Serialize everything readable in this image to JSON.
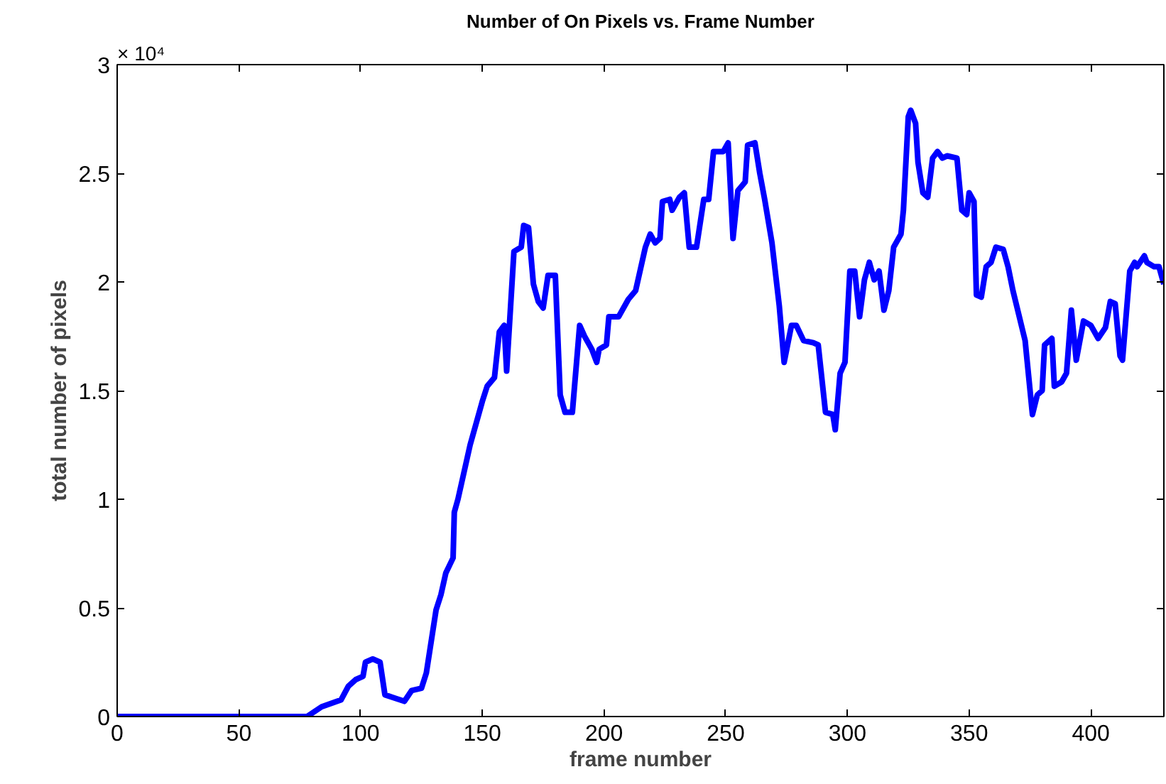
{
  "chart_data": {
    "type": "line",
    "title": "Number of On Pixels vs. Frame Number",
    "xlabel": "frame number",
    "ylabel": "total number of pixels",
    "annotations": [
      "× 10⁴"
    ],
    "xlim": [
      0,
      430
    ],
    "ylim": [
      0,
      3
    ],
    "xticks": [
      0,
      50,
      100,
      150,
      200,
      250,
      300,
      350,
      400
    ],
    "yticks": [
      0,
      0.5,
      1,
      1.5,
      2,
      2.5,
      3
    ],
    "grid": false,
    "marker": "none",
    "line_style": "solid",
    "series": [
      {
        "color": "#0000ff",
        "x": [
          0,
          78,
          84,
          92,
          95,
          98,
          101,
          102,
          105,
          108,
          110,
          114,
          118,
          121,
          125,
          127,
          131,
          133,
          135,
          138,
          138.5,
          140,
          145,
          150,
          152,
          155,
          157,
          159,
          160,
          163,
          166,
          167,
          169,
          171,
          173,
          175,
          177,
          180,
          182,
          184,
          187,
          190,
          192,
          195,
          197,
          198,
          201,
          202,
          206,
          210,
          213,
          217,
          219,
          221,
          223,
          224,
          227,
          228,
          231,
          233,
          235,
          238,
          241,
          243,
          245,
          249,
          251,
          253,
          255,
          258,
          259,
          262,
          264,
          266,
          269,
          272,
          274,
          277,
          279,
          282,
          286,
          288,
          291,
          294,
          295,
          297,
          299,
          301,
          303,
          305,
          307,
          309,
          311,
          313,
          315,
          317,
          319,
          322,
          323,
          325,
          326,
          328,
          329,
          331,
          333,
          335,
          337,
          339,
          341,
          345,
          347,
          349,
          350,
          352,
          353,
          355,
          357,
          359,
          361,
          364,
          366,
          368,
          373,
          376,
          378,
          380,
          381,
          384,
          385,
          388,
          390,
          392,
          394,
          397,
          400,
          403,
          406,
          408,
          410,
          412,
          413,
          416,
          418,
          419,
          422,
          423,
          426,
          428,
          430
        ],
        "values": [
          0,
          0,
          0.045,
          0.077,
          0.14,
          0.17,
          0.185,
          0.25,
          0.265,
          0.25,
          0.1,
          0.085,
          0.07,
          0.12,
          0.13,
          0.2,
          0.49,
          0.56,
          0.66,
          0.73,
          0.94,
          1.0,
          1.25,
          1.45,
          1.52,
          1.56,
          1.77,
          1.8,
          1.59,
          2.14,
          2.16,
          2.26,
          2.25,
          1.99,
          1.91,
          1.88,
          2.03,
          2.03,
          1.48,
          1.4,
          1.4,
          1.8,
          1.75,
          1.69,
          1.63,
          1.69,
          1.71,
          1.84,
          1.84,
          1.92,
          1.96,
          2.16,
          2.22,
          2.18,
          2.2,
          2.37,
          2.38,
          2.33,
          2.39,
          2.41,
          2.16,
          2.16,
          2.38,
          2.38,
          2.6,
          2.6,
          2.64,
          2.2,
          2.42,
          2.46,
          2.63,
          2.64,
          2.5,
          2.38,
          2.18,
          1.89,
          1.63,
          1.8,
          1.8,
          1.73,
          1.72,
          1.71,
          1.4,
          1.39,
          1.32,
          1.58,
          1.63,
          2.05,
          2.05,
          1.84,
          2.01,
          2.09,
          2.01,
          2.05,
          1.87,
          1.96,
          2.16,
          2.22,
          2.33,
          2.76,
          2.79,
          2.73,
          2.55,
          2.41,
          2.39,
          2.57,
          2.6,
          2.57,
          2.58,
          2.57,
          2.33,
          2.31,
          2.41,
          2.37,
          1.94,
          1.93,
          2.07,
          2.09,
          2.16,
          2.15,
          2.07,
          1.96,
          1.73,
          1.39,
          1.48,
          1.5,
          1.71,
          1.74,
          1.52,
          1.54,
          1.58,
          1.87,
          1.64,
          1.82,
          1.8,
          1.74,
          1.79,
          1.91,
          1.9,
          1.66,
          1.64,
          2.05,
          2.09,
          2.07,
          2.12,
          2.09,
          2.07,
          2.07,
          1.99
        ]
      }
    ]
  }
}
